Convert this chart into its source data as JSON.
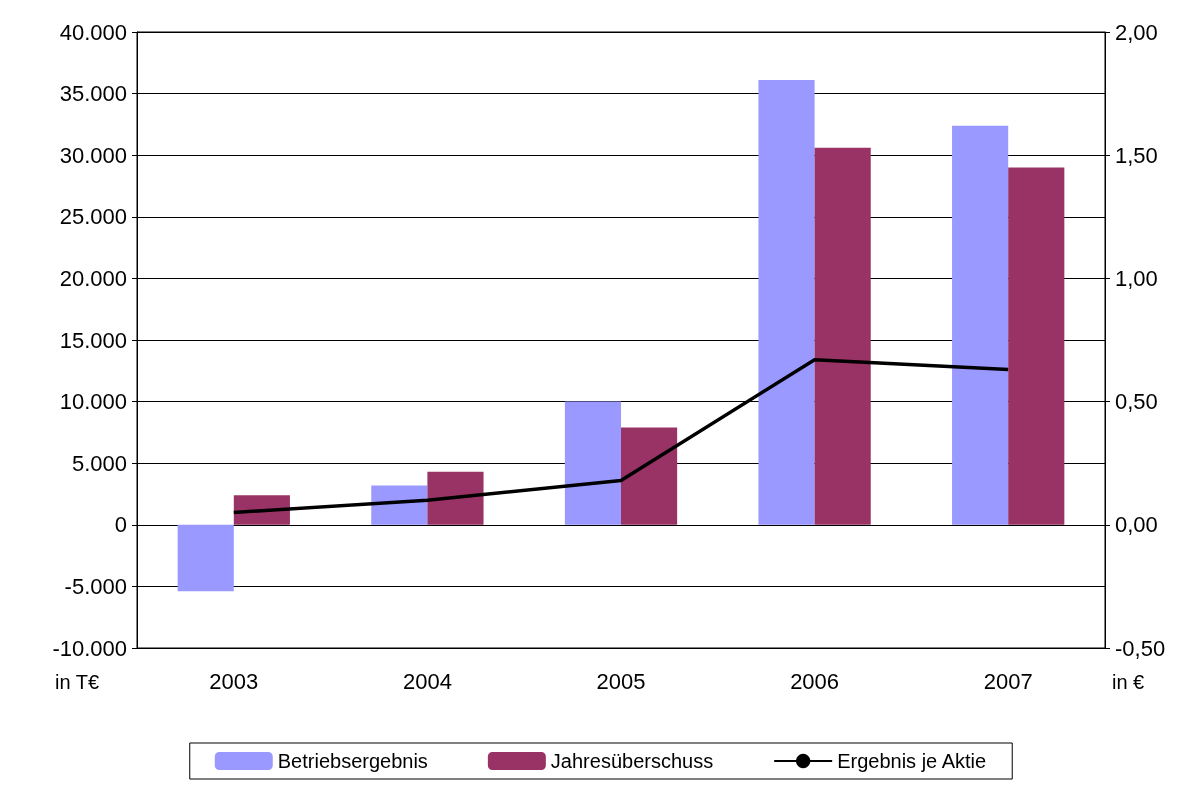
{
  "chart_data": {
    "type": "bar",
    "categories": [
      "2003",
      "2004",
      "2005",
      "2006",
      "2007"
    ],
    "ylabel": "in T€",
    "y2label": "in €",
    "ylim": [
      -10000,
      40000
    ],
    "yticks": [
      {
        "value": -10000,
        "label": "-10.000"
      },
      {
        "value": -5000,
        "label": "-5.000"
      },
      0,
      {
        "value": 5000,
        "label": "5.000"
      },
      {
        "value": 10000,
        "label": "10.000"
      },
      {
        "value": 15000,
        "label": "15.000"
      },
      {
        "value": 20000,
        "label": "20.000"
      },
      {
        "value": 25000,
        "label": "25.000"
      },
      {
        "value": 30000,
        "label": "30.000"
      },
      {
        "value": 35000,
        "label": "35.000"
      },
      {
        "value": 40000,
        "label": "40.000"
      }
    ],
    "y2lim": [
      -0.5,
      2
    ],
    "y2ticks": [
      {
        "value": -0.5,
        "label": "-0,50"
      },
      {
        "value": 0,
        "label": "0,00"
      },
      {
        "value": 0.5,
        "label": "0,50"
      },
      {
        "value": 1,
        "label": "1,00"
      },
      {
        "value": 1.5,
        "label": "1,50"
      },
      {
        "value": 2,
        "label": "2,00"
      }
    ],
    "series": [
      {
        "name": "Betriebsergebnis",
        "color": "#9999ff",
        "values": [
          -5400,
          3200,
          10000,
          36100,
          32400
        ]
      },
      {
        "name": "Jahresüberschuss",
        "color": "#993366",
        "values": [
          2400,
          4300,
          7900,
          30600,
          29000
        ]
      },
      {
        "name": "Ergebnis je Aktie",
        "type": "line",
        "axis": "y2",
        "color": "#000000",
        "values": [
          0.05,
          0.1,
          0.18,
          0.67,
          0.63
        ]
      }
    ],
    "grid": "y",
    "legend": "bottom"
  }
}
